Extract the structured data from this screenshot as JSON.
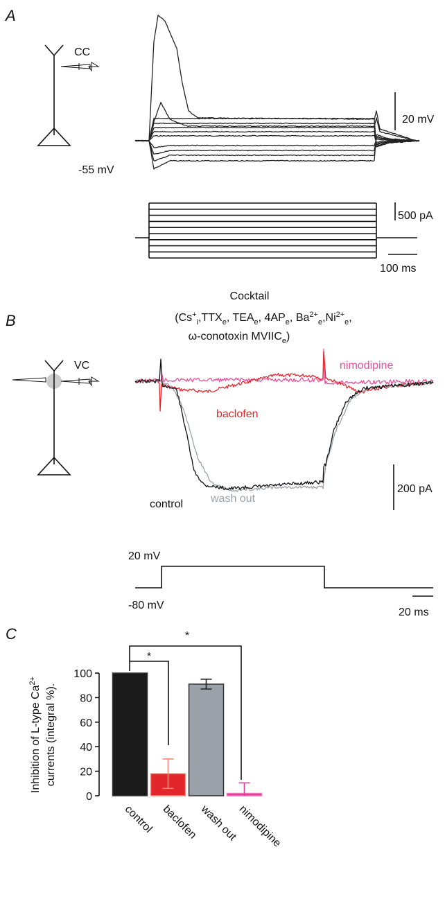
{
  "panel_a": {
    "label": "A",
    "mode": "CC",
    "holding": "-55 mV",
    "scale_v": "20 mV",
    "scale_i": "500 pA",
    "scale_t": "100 ms"
  },
  "panel_b": {
    "label": "B",
    "title": "Cocktail",
    "subtitle": [
      [
        "(Cs",
        "+",
        "i",
        ",TTX",
        "e",
        ", TEA",
        "e",
        ", 4AP",
        "e",
        ", Ba",
        "2+",
        "e",
        ",Ni",
        "2+",
        "e",
        ","
      ],
      [
        "ω-conotoxin MVIIC",
        "e",
        ")"
      ]
    ],
    "mode": "VC",
    "trace_labels": [
      "nimodipine",
      "baclofen",
      "wash out",
      "control"
    ],
    "scale_i": "200 pA",
    "step_high": "20 mV",
    "step_low": "-80 mV",
    "scale_t": "20 ms"
  },
  "chart_data": {
    "type": "bar",
    "label": "C",
    "ylabel": [
      [
        "Inhibition of L-type Ca",
        "2+"
      ],
      "currents (integral %)."
    ],
    "categories": [
      "control",
      "baclofen",
      "wash out",
      "nimodipine"
    ],
    "values": [
      100,
      18,
      91,
      2
    ],
    "errors": [
      null,
      12,
      4,
      8.5
    ],
    "colors": [
      "#1a1a1a",
      "#e3262b",
      "#9aa1a8",
      "#e23a9b"
    ],
    "ylim": [
      0,
      100
    ],
    "yticks": [
      0,
      20,
      40,
      60,
      80,
      100
    ],
    "annotations": [
      "*",
      "*"
    ]
  }
}
